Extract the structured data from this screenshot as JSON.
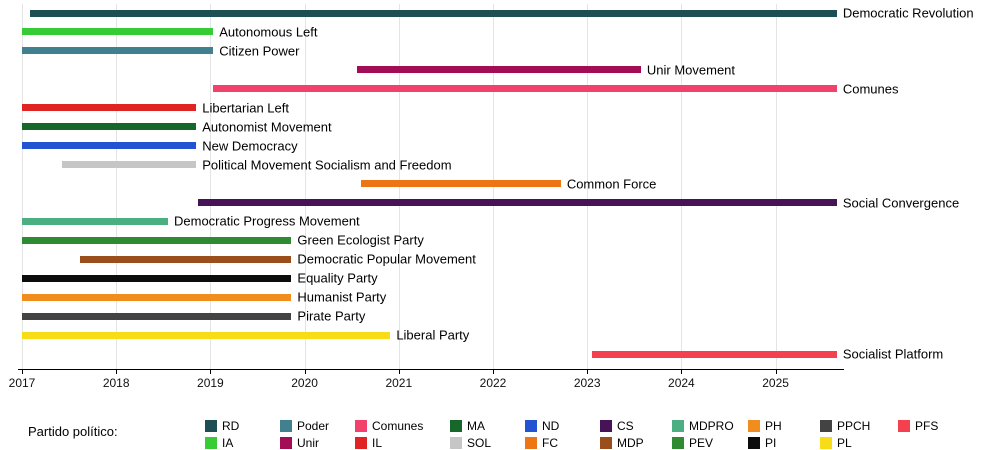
{
  "legend": {
    "title": "Partido político:",
    "columns": [
      [
        {
          "label": "RD",
          "color": "#1c4e54"
        },
        {
          "label": "IA",
          "color": "#35cc35"
        }
      ],
      [
        {
          "label": "Poder",
          "color": "#41808f"
        },
        {
          "label": "Unir",
          "color": "#a20d56"
        }
      ],
      [
        {
          "label": "Comunes",
          "color": "#f2426b"
        },
        {
          "label": "IL",
          "color": "#e02424"
        }
      ],
      [
        {
          "label": "MA",
          "color": "#15682a"
        },
        {
          "label": "SOL",
          "color": "#c6c6c6"
        }
      ],
      [
        {
          "label": "ND",
          "color": "#2253d0"
        },
        {
          "label": "FC",
          "color": "#ee7514"
        }
      ],
      [
        {
          "label": "CS",
          "color": "#461357"
        },
        {
          "label": "MDP",
          "color": "#9a4e1c"
        }
      ],
      [
        {
          "label": "MDPRO",
          "color": "#4caf82"
        },
        {
          "label": "PEV",
          "color": "#2e8b32"
        }
      ],
      [
        {
          "label": "PH",
          "color": "#f18c1f"
        },
        {
          "label": "PI",
          "color": "#0c0c0c"
        }
      ],
      [
        {
          "label": "PPCH",
          "color": "#434343"
        },
        {
          "label": "PL",
          "color": "#f6dd17"
        }
      ],
      [
        {
          "label": "PFS",
          "color": "#f5414f"
        }
      ]
    ]
  },
  "chart_data": {
    "type": "bar",
    "subtype": "horizontal-timeline",
    "title": "",
    "xlabel": "",
    "ylabel": "",
    "x_ticks": [
      2017,
      2018,
      2019,
      2020,
      2021,
      2022,
      2023,
      2024,
      2025
    ],
    "x_range": [
      2017,
      2025.7
    ],
    "grid": true,
    "legend_position": "bottom",
    "bars": [
      {
        "party": "RD",
        "label": "Democratic Revolution",
        "start": 2017.08,
        "end": 2025.65,
        "color": "#1c4e54"
      },
      {
        "party": "IA",
        "label": "Autonomous Left",
        "start": 2017.0,
        "end": 2019.03,
        "color": "#35cc35"
      },
      {
        "party": "Poder",
        "label": "Citizen Power",
        "start": 2017.0,
        "end": 2019.03,
        "color": "#41808f"
      },
      {
        "party": "Unir",
        "label": "Unir Movement",
        "start": 2020.56,
        "end": 2023.57,
        "color": "#a20d56"
      },
      {
        "party": "Comunes",
        "label": "Comunes",
        "start": 2019.03,
        "end": 2025.65,
        "color": "#f2426b"
      },
      {
        "party": "IL",
        "label": "Libertarian Left",
        "start": 2017.0,
        "end": 2018.85,
        "color": "#e02424"
      },
      {
        "party": "MA",
        "label": "Autonomist Movement",
        "start": 2017.0,
        "end": 2018.85,
        "color": "#15682a"
      },
      {
        "party": "ND",
        "label": "New Democracy",
        "start": 2017.0,
        "end": 2018.85,
        "color": "#2253d0"
      },
      {
        "party": "SOL",
        "label": "Political Movement Socialism and Freedom",
        "start": 2017.42,
        "end": 2018.85,
        "color": "#c6c6c6"
      },
      {
        "party": "FC",
        "label": "Common Force",
        "start": 2020.6,
        "end": 2022.72,
        "color": "#ee7514"
      },
      {
        "party": "CS",
        "label": "Social Convergence",
        "start": 2018.87,
        "end": 2025.65,
        "color": "#461357"
      },
      {
        "party": "MDPRO",
        "label": "Democratic Progress Movement",
        "start": 2017.0,
        "end": 2018.55,
        "color": "#4caf82"
      },
      {
        "party": "PEV",
        "label": "Green Ecologist Party",
        "start": 2017.0,
        "end": 2019.86,
        "color": "#2e8b32"
      },
      {
        "party": "MDP",
        "label": "Democratic Popular Movement",
        "start": 2017.62,
        "end": 2019.86,
        "color": "#9a4e1c"
      },
      {
        "party": "PI",
        "label": "Equality Party",
        "start": 2017.0,
        "end": 2019.86,
        "color": "#0c0c0c"
      },
      {
        "party": "PH",
        "label": "Humanist Party",
        "start": 2017.0,
        "end": 2019.86,
        "color": "#f18c1f"
      },
      {
        "party": "PPCH",
        "label": "Pirate Party",
        "start": 2017.0,
        "end": 2019.86,
        "color": "#434343"
      },
      {
        "party": "PL",
        "label": "Liberal Party",
        "start": 2017.0,
        "end": 2020.91,
        "color": "#f6dd17"
      },
      {
        "party": "PFS",
        "label": "Socialist Platform",
        "start": 2023.05,
        "end": 2025.65,
        "color": "#f5414f"
      }
    ]
  }
}
